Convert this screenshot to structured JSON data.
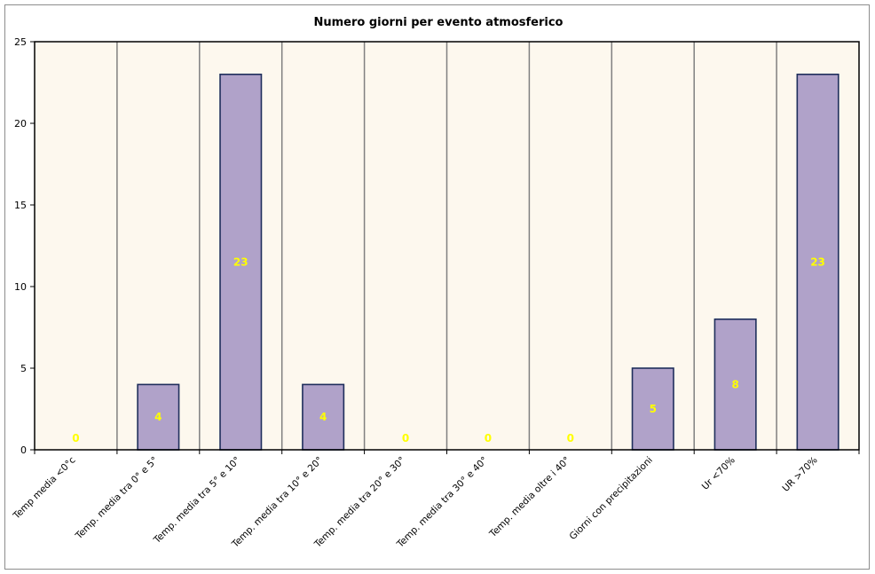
{
  "chart_data": {
    "type": "bar",
    "title": "Numero giorni per evento atmosferico",
    "categories": [
      "Temp media <0°c",
      "Temp. media tra 0° e 5°",
      "Temp. media tra 5° e 10°",
      "Temp. media tra 10° e 20°",
      "Temp. media tra 20° e 30°",
      "Temp. media tra 30° e 40°",
      "Temp. media oltre i 40°",
      "Giorni con precipitazioni",
      "Ur <70%",
      "UR >70%"
    ],
    "values": [
      0,
      4,
      23,
      4,
      0,
      0,
      0,
      5,
      8,
      23
    ],
    "xlabel": "",
    "ylabel": "",
    "ylim": [
      0,
      25
    ],
    "yticks": [
      0,
      5,
      10,
      15,
      20,
      25
    ],
    "grid": "vertical category separators",
    "legend": "none",
    "data_labels": true,
    "colors": {
      "bar_fill": "#b0a2c9",
      "bar_stroke": "#1f2f5c",
      "plot_background": "#fdf8ee",
      "data_label": "#ffff00",
      "gridline": "#808080"
    }
  }
}
